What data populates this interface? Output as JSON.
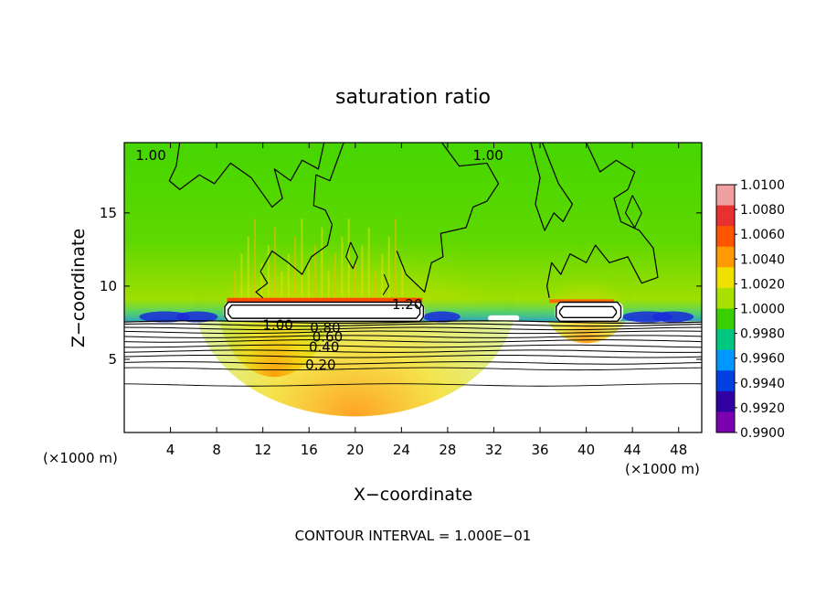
{
  "chart_data": {
    "type": "heatmap",
    "title": "saturation ratio",
    "xlabel": "X−coordinate",
    "ylabel": "Z−coordinate",
    "x_unit_left": "(×1000 m)",
    "x_unit_right": "(×1000 m)",
    "xlim": [
      0,
      50
    ],
    "ylim": [
      0,
      19.8
    ],
    "x_ticks": [
      4,
      8,
      12,
      16,
      20,
      24,
      28,
      32,
      36,
      40,
      44,
      48
    ],
    "y_ticks": [
      5,
      10,
      15
    ],
    "colorbar": {
      "min": 0.99,
      "max": 1.01,
      "tick_labels": [
        "1.0100",
        "1.0080",
        "1.0060",
        "1.0040",
        "1.0020",
        "1.0000",
        "0.9980",
        "0.9960",
        "0.9940",
        "0.9920",
        "0.9900"
      ],
      "colors": [
        "#f0a0a0",
        "#e83030",
        "#ff5500",
        "#ff9a00",
        "#f0e000",
        "#a8e000",
        "#3ad000",
        "#00c880",
        "#0098ff",
        "#0040e0",
        "#3000a0",
        "#7a00b0"
      ]
    },
    "contour_labels": [
      {
        "text": "1.00",
        "x": 2.3,
        "y": 19.0
      },
      {
        "text": "1.00",
        "x": 31.5,
        "y": 19.0
      },
      {
        "text": "1.20",
        "x": 24.5,
        "y": 8.8
      },
      {
        "text": "1.00",
        "x": 13.3,
        "y": 7.4
      },
      {
        "text": "0.80",
        "x": 17.4,
        "y": 7.2
      },
      {
        "text": "0.60",
        "x": 17.6,
        "y": 6.6
      },
      {
        "text": "0.40",
        "x": 17.3,
        "y": 5.9
      },
      {
        "text": "0.20",
        "x": 17.0,
        "y": 4.7
      }
    ],
    "contour_levels": [
      0.1,
      0.2,
      0.3,
      0.4,
      0.5,
      0.6,
      0.7,
      0.8,
      0.9,
      1.0,
      1.2
    ],
    "footer": "CONTOUR INTERVAL = 1.000E−01"
  }
}
